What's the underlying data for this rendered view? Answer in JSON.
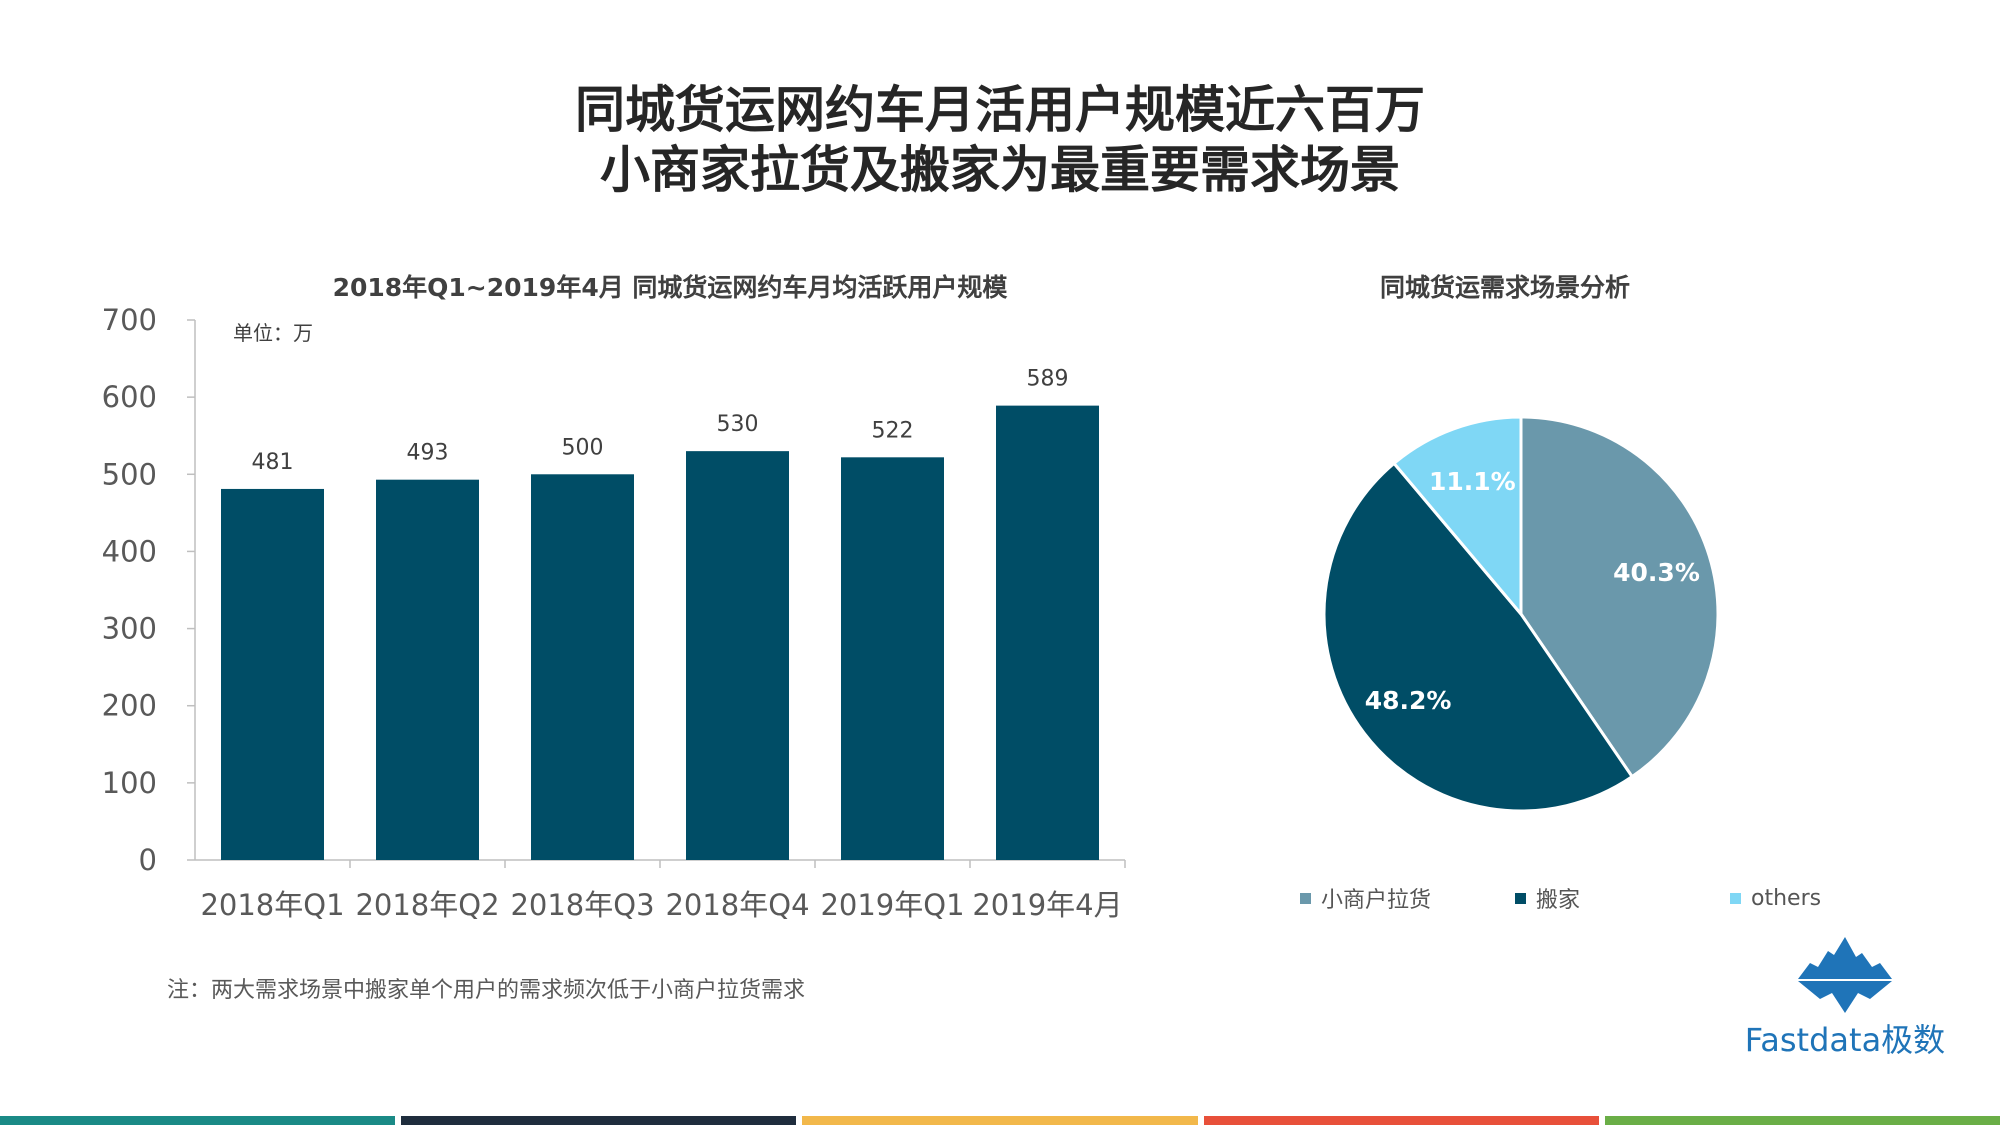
{
  "page": {
    "title_line1": "同城货运网约车月活用户规模近六百万",
    "title_line2": "小商家拉货及搬家为最重要需求场景",
    "note": "注：两大需求场景中搬家单个用户的需求频次低于小商户拉货需求",
    "logo_text": "Fastdata极数",
    "logo_icon": "iceberg-logo-icon",
    "strip_colors": [
      "#1a8a86",
      "#1f2d3d",
      "#f2b84b",
      "#e8503a",
      "#6aae47"
    ]
  },
  "chart_data": [
    {
      "type": "bar",
      "title": "2018年Q1~2019年4月 同城货运网约车月均活跃用户规模",
      "unit_label": "单位：万",
      "categories": [
        "2018年Q1",
        "2018年Q2",
        "2018年Q3",
        "2018年Q4",
        "2019年Q1",
        "2019年4月"
      ],
      "values": [
        481,
        493,
        500,
        530,
        522,
        589
      ],
      "ylim": [
        0,
        700
      ],
      "yticks": [
        "0",
        "100",
        "200",
        "300",
        "400",
        "500",
        "600",
        "700"
      ],
      "color": "#004d66",
      "grid": false
    },
    {
      "type": "pie",
      "title": "同城货运需求场景分析",
      "slices": [
        {
          "name": "小商户拉货",
          "value": 40.3,
          "label": "40.3%",
          "color": "#6a98ab"
        },
        {
          "name": "搬家",
          "value": 48.2,
          "label": "48.2%",
          "color": "#004d66"
        },
        {
          "name": "others",
          "value": 11.1,
          "label": "11.1%",
          "color": "#7fd7f5"
        }
      ],
      "legend_position": "bottom"
    }
  ]
}
